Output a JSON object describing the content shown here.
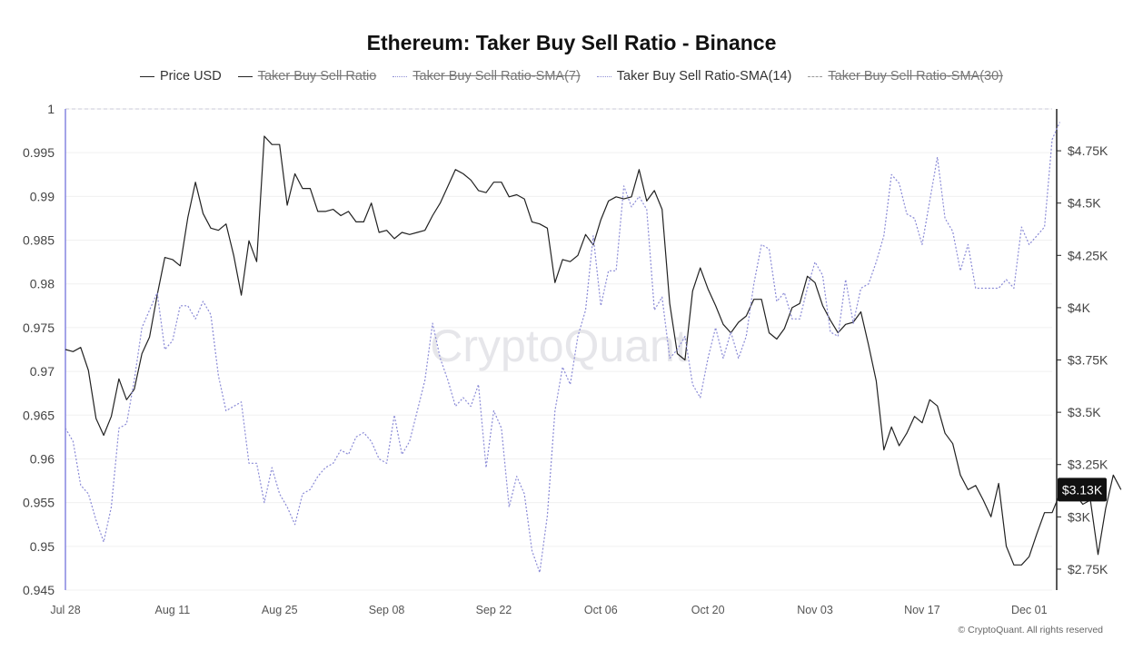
{
  "title": "Ethereum: Taker Buy Sell Ratio - Binance",
  "watermark": "CryptoQuant",
  "copyright": "© CryptoQuant. All rights reserved",
  "legend": [
    {
      "label": "Price USD",
      "style": "solid",
      "color": "#222222",
      "active": true
    },
    {
      "label": "Taker Buy Sell Ratio",
      "style": "solid",
      "color": "#222222",
      "active": false
    },
    {
      "label": "Taker Buy Sell Ratio-SMA(7)",
      "style": "dotted",
      "color": "#8f8fd6",
      "active": false
    },
    {
      "label": "Taker Buy Sell Ratio-SMA(14)",
      "style": "dotted",
      "color": "#8f8fd6",
      "active": true
    },
    {
      "label": "Taker Buy Sell Ratio-SMA(30)",
      "style": "dashed",
      "color": "#999999",
      "active": false
    }
  ],
  "chart_data": {
    "type": "line",
    "title": "Ethereum: Taker Buy Sell Ratio - Binance",
    "x_range": [
      "2025-07-28",
      "2025-12-04"
    ],
    "x_ticks": [
      {
        "date": "2025-07-28",
        "label": "Jul 28"
      },
      {
        "date": "2025-08-11",
        "label": "Aug 11"
      },
      {
        "date": "2025-08-25",
        "label": "Aug 25"
      },
      {
        "date": "2025-09-08",
        "label": "Sep 08"
      },
      {
        "date": "2025-09-22",
        "label": "Sep 22"
      },
      {
        "date": "2025-10-06",
        "label": "Oct 06"
      },
      {
        "date": "2025-10-20",
        "label": "Oct 20"
      },
      {
        "date": "2025-11-03",
        "label": "Nov 03"
      },
      {
        "date": "2025-11-17",
        "label": "Nov 17"
      },
      {
        "date": "2025-12-01",
        "label": "Dec 01"
      }
    ],
    "y_left": {
      "min": 0.945,
      "max": 1.0,
      "ticks": [
        1,
        0.995,
        0.99,
        0.985,
        0.98,
        0.975,
        0.97,
        0.965,
        0.96,
        0.955,
        0.95,
        0.945
      ],
      "tick_labels": [
        "1",
        "0.995",
        "0.99",
        "0.985",
        "0.98",
        "0.975",
        "0.97",
        "0.965",
        "0.96",
        "0.955",
        "0.95",
        "0.945"
      ]
    },
    "y_right": {
      "min": 2650,
      "max": 4950,
      "ticks": [
        4750,
        4500,
        4250,
        4000,
        3750,
        3500,
        3250,
        3000,
        2750
      ],
      "tick_labels": [
        "$4.75K",
        "$4.5K",
        "$4.25K",
        "$4K",
        "$3.75K",
        "$3.5K",
        "$3.25K",
        "$3K",
        "$2.75K"
      ]
    },
    "current_price_label": "$3.13K",
    "current_price": 3130,
    "reference_line": 1.0,
    "series": [
      {
        "name": "Price USD",
        "axis": "right",
        "color": "#222222",
        "style": "solid",
        "start_date": "2025-07-28",
        "values": [
          3800,
          3790,
          3810,
          3700,
          3470,
          3390,
          3480,
          3660,
          3560,
          3610,
          3780,
          3860,
          4060,
          4240,
          4230,
          4200,
          4430,
          4600,
          4450,
          4380,
          4370,
          4400,
          4250,
          4060,
          4320,
          4220,
          4820,
          4780,
          4780,
          4490,
          4640,
          4570,
          4570,
          4460,
          4460,
          4470,
          4440,
          4460,
          4410,
          4410,
          4500,
          4360,
          4370,
          4330,
          4360,
          4350,
          4360,
          4370,
          4440,
          4500,
          4580,
          4660,
          4640,
          4610,
          4560,
          4550,
          4600,
          4600,
          4530,
          4540,
          4520,
          4410,
          4400,
          4380,
          4120,
          4230,
          4220,
          4250,
          4350,
          4300,
          4420,
          4510,
          4530,
          4520,
          4530,
          4660,
          4510,
          4560,
          4470,
          4020,
          3780,
          3750,
          4080,
          4190,
          4090,
          4010,
          3920,
          3880,
          3930,
          3960,
          4040,
          4040,
          3880,
          3850,
          3900,
          4000,
          4020,
          4150,
          4120,
          4010,
          3940,
          3880,
          3920,
          3930,
          3980,
          3820,
          3650,
          3320,
          3430,
          3340,
          3400,
          3480,
          3450,
          3560,
          3530,
          3400,
          3350,
          3200,
          3130,
          3150,
          3080,
          3000,
          3160,
          2860,
          2770,
          2770,
          2810,
          2920,
          3020,
          3020,
          3110,
          3100,
          3110,
          3060,
          3080,
          2820,
          3040,
          3200,
          3130
        ]
      },
      {
        "name": "Taker Buy Sell Ratio-SMA(14)",
        "axis": "left",
        "color": "#8a8ad6",
        "style": "dotted",
        "start_date": "2025-07-28",
        "values": [
          0.9635,
          0.962,
          0.957,
          0.956,
          0.953,
          0.9505,
          0.9545,
          0.9635,
          0.964,
          0.969,
          0.975,
          0.977,
          0.979,
          0.9725,
          0.9735,
          0.9775,
          0.9775,
          0.976,
          0.978,
          0.9765,
          0.9695,
          0.9655,
          0.966,
          0.9665,
          0.9595,
          0.9595,
          0.955,
          0.959,
          0.956,
          0.9545,
          0.9525,
          0.956,
          0.9565,
          0.958,
          0.959,
          0.9595,
          0.961,
          0.9605,
          0.9625,
          0.963,
          0.962,
          0.96,
          0.9595,
          0.965,
          0.9605,
          0.962,
          0.9655,
          0.969,
          0.9755,
          0.9715,
          0.969,
          0.966,
          0.967,
          0.966,
          0.9685,
          0.959,
          0.9655,
          0.9635,
          0.9545,
          0.958,
          0.956,
          0.9495,
          0.947,
          0.9535,
          0.9655,
          0.9705,
          0.9685,
          0.974,
          0.977,
          0.9855,
          0.9775,
          0.9815,
          0.9815,
          0.9912,
          0.9888,
          0.99,
          0.9885,
          0.977,
          0.9785,
          0.9715,
          0.9725,
          0.974,
          0.9685,
          0.967,
          0.9715,
          0.975,
          0.9715,
          0.9745,
          0.9715,
          0.974,
          0.98,
          0.9845,
          0.984,
          0.978,
          0.979,
          0.976,
          0.976,
          0.9795,
          0.9825,
          0.981,
          0.9745,
          0.974,
          0.9805,
          0.9755,
          0.9795,
          0.98,
          0.9825,
          0.9855,
          0.9925,
          0.9915,
          0.988,
          0.9875,
          0.9845,
          0.9895,
          0.9945,
          0.9875,
          0.986,
          0.9815,
          0.9845,
          0.9795,
          0.9795,
          0.9795,
          0.9795,
          0.9805,
          0.9795,
          0.9865,
          0.9845,
          0.9855,
          0.9865,
          0.9965,
          0.9985
        ]
      }
    ]
  }
}
